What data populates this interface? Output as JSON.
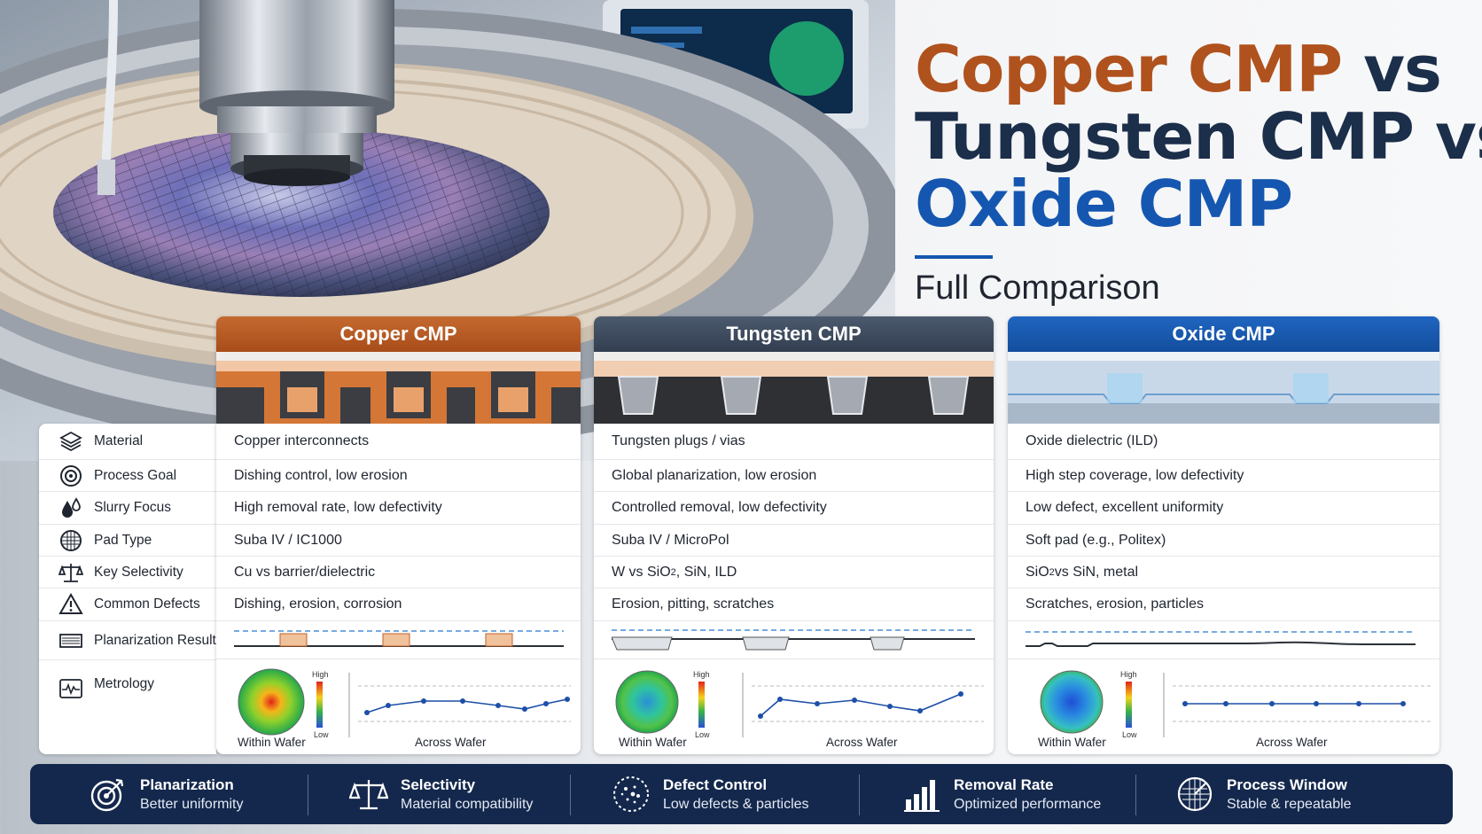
{
  "title": {
    "line1_a": "Copper CMP",
    "line1_b": " vs",
    "line2": "Tungsten CMP vs",
    "line3": "Oxide CMP",
    "subtitle": "Full Comparison"
  },
  "colors": {
    "copper": "#b0521d",
    "tungsten": "#3c4a5e",
    "oxide": "#1557b0",
    "navy": "#14284d"
  },
  "rows": [
    {
      "label": "Material",
      "icon": "layers-icon"
    },
    {
      "label": "Process Goal",
      "icon": "target-icon"
    },
    {
      "label": "Slurry Focus",
      "icon": "droplets-icon"
    },
    {
      "label": "Pad Type",
      "icon": "pad-icon"
    },
    {
      "label": "Key Selectivity",
      "icon": "scale-icon"
    },
    {
      "label": "Common Defects",
      "icon": "warning-icon"
    },
    {
      "label": "Planarization Result",
      "icon": "profile-icon"
    },
    {
      "label": "Metrology",
      "icon": "waveform-icon"
    }
  ],
  "columns": [
    {
      "name": "Copper CMP",
      "cells": [
        "Copper interconnects",
        "Dishing control, low erosion",
        "High removal rate, low defectivity",
        "Suba IV / IC1000",
        "Cu vs barrier/dielectric",
        "Dishing, erosion, corrosion"
      ],
      "within": "Within Wafer",
      "across": "Across Wafer",
      "high": "High",
      "low": "Low"
    },
    {
      "name": "Tungsten CMP",
      "cells": [
        "Tungsten plugs / vias",
        "Global planarization, low erosion",
        "Controlled removal, low defectivity",
        "Suba IV / MicroPol",
        "W vs SiO2, SiN, ILD",
        "Erosion, pitting, scratches"
      ],
      "within": "Within Wafer",
      "across": "Across Wafer",
      "high": "High",
      "low": "Low"
    },
    {
      "name": "Oxide CMP",
      "cells": [
        "Oxide dielectric (ILD)",
        "High step coverage, low defectivity",
        "Low defect, excellent uniformity",
        "Soft pad (e.g., Politex)",
        "SiO2 vs SiN,  metal",
        "Scratches, erosion, particles"
      ],
      "within": "Within Wafer",
      "across": "Across Wafer",
      "high": "High",
      "low": "Low"
    }
  ],
  "footer": [
    {
      "title": "Planarization",
      "sub": "Better uniformity",
      "icon": "target-icon"
    },
    {
      "title": "Selectivity",
      "sub": "Material compatibility",
      "icon": "scale-icon"
    },
    {
      "title": "Defect Control",
      "sub": "Low defects & particles",
      "icon": "particles-icon"
    },
    {
      "title": "Removal Rate",
      "sub": "Optimized performance",
      "icon": "bar-chart-icon"
    },
    {
      "title": "Process Window",
      "sub": "Stable & repeatable",
      "icon": "wafer-icon"
    }
  ]
}
